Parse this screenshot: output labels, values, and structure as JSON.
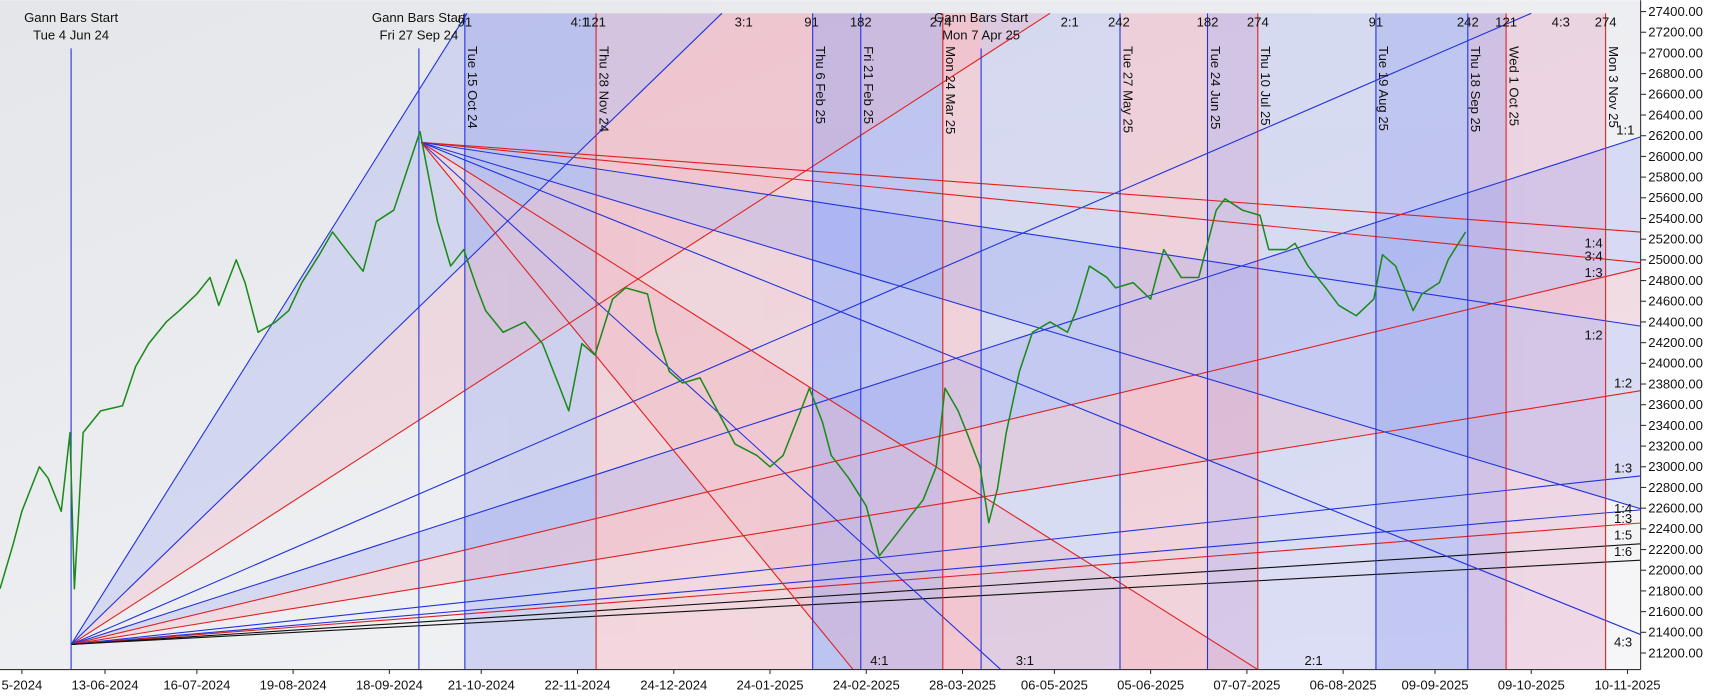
{
  "chart_data": {
    "type": "line",
    "series": [
      {
        "color": "#1a8a1a",
        "x": [
          0,
          3,
          5,
          9,
          11,
          14,
          16,
          17,
          19,
          23,
          28,
          31,
          34,
          38,
          41,
          45,
          48,
          50,
          54,
          56,
          59,
          63,
          66,
          69,
          73,
          76,
          80,
          83,
          86,
          90,
          93,
          96,
          98,
          100,
          103,
          106,
          109,
          111,
          115,
          120,
          124,
          128,
          130,
          133,
          136,
          140,
          143,
          148,
          150,
          153,
          156,
          160,
          164,
          168,
          173,
          176,
          179,
          183,
          185,
          188,
          190,
          194,
          198,
          201,
          204,
          208,
          211,
          214,
          216,
          219,
          221,
          224,
          226,
          228,
          230,
          233,
          236,
          240,
          244,
          246,
          249,
          253,
          255,
          259,
          263,
          266,
          270,
          274,
          278,
          280,
          284,
          288,
          290,
          294,
          296,
          299,
          303,
          306,
          310,
          314,
          316,
          319,
          323,
          325,
          329,
          331,
          335
        ],
        "values": [
          21820,
          22250,
          22570,
          23000,
          22890,
          22570,
          23330,
          21820,
          23330,
          23540,
          23590,
          23970,
          24190,
          24400,
          24510,
          24670,
          24830,
          24560,
          25000,
          24780,
          24300,
          24400,
          24510,
          24780,
          25050,
          25270,
          25050,
          24890,
          25370,
          25480,
          25860,
          26240,
          25800,
          25370,
          24940,
          25100,
          24730,
          24510,
          24300,
          24400,
          24190,
          23760,
          23540,
          24190,
          24080,
          24620,
          24730,
          24670,
          24300,
          23920,
          23810,
          23860,
          23540,
          23220,
          23110,
          23000,
          23110,
          23540,
          23760,
          23430,
          23110,
          22890,
          22620,
          22140,
          22300,
          22520,
          22680,
          23000,
          23760,
          23540,
          23330,
          23000,
          22460,
          22790,
          23330,
          23920,
          24300,
          24400,
          24300,
          24510,
          24940,
          24830,
          24730,
          24780,
          24620,
          25100,
          24830,
          24830,
          25480,
          25590,
          25480,
          25430,
          25100,
          25100,
          25160,
          24940,
          24730,
          24560,
          24460,
          24620,
          25050,
          24940,
          24510,
          24670,
          24780,
          25000,
          25270
        ]
      }
    ],
    "xlim": [
      0,
      375
    ],
    "xticks": [
      {
        "value": 5,
        "label": "5-2024"
      },
      {
        "value": 24,
        "label": "13-06-2024"
      },
      {
        "value": 45,
        "label": "16-07-2024"
      },
      {
        "value": 67,
        "label": "19-08-2024"
      },
      {
        "value": 89,
        "label": "18-09-2024"
      },
      {
        "value": 110,
        "label": "21-10-2024"
      },
      {
        "value": 132,
        "label": "22-11-2024"
      },
      {
        "value": 154,
        "label": "24-12-2024"
      },
      {
        "value": 176,
        "label": "24-01-2025"
      },
      {
        "value": 198,
        "label": "24-02-2025"
      },
      {
        "value": 220,
        "label": "28-03-2025"
      },
      {
        "value": 241,
        "label": "06-05-2025"
      },
      {
        "value": 263,
        "label": "05-06-2025"
      },
      {
        "value": 285,
        "label": "07-07-2025"
      },
      {
        "value": 307,
        "label": "06-08-2025"
      },
      {
        "value": 328,
        "label": "09-09-2025"
      },
      {
        "value": 350,
        "label": "09-10-2025"
      },
      {
        "value": 372,
        "label": "10-11-2025"
      }
    ],
    "ylim": [
      21040,
      27510
    ],
    "yticks": [
      {
        "value": 21200,
        "label": "21200.00"
      },
      {
        "value": 21400,
        "label": "21400.00"
      },
      {
        "value": 21600,
        "label": "21600.00"
      },
      {
        "value": 21800,
        "label": "21800.00"
      },
      {
        "value": 22000,
        "label": "22000.00"
      },
      {
        "value": 22200,
        "label": "22200.00"
      },
      {
        "value": 22400,
        "label": "22400.00"
      },
      {
        "value": 22600,
        "label": "22600.00"
      },
      {
        "value": 22800,
        "label": "22800.00"
      },
      {
        "value": 23000,
        "label": "23000.00"
      },
      {
        "value": 23200,
        "label": "23200.00"
      },
      {
        "value": 23400,
        "label": "23400.00"
      },
      {
        "value": 23600,
        "label": "23600.00"
      },
      {
        "value": 23800,
        "label": "23800.00"
      },
      {
        "value": 24000,
        "label": "24000.00"
      },
      {
        "value": 24200,
        "label": "24200.00"
      },
      {
        "value": 24400,
        "label": "24400.00"
      },
      {
        "value": 24600,
        "label": "24600.00"
      },
      {
        "value": 24800,
        "label": "24800.00"
      },
      {
        "value": 25000,
        "label": "25000.00"
      },
      {
        "value": 25200,
        "label": "25200.00"
      },
      {
        "value": 25400,
        "label": "25400.00"
      },
      {
        "value": 25600,
        "label": "25600.00"
      },
      {
        "value": 25800,
        "label": "25800.00"
      },
      {
        "value": 26000,
        "label": "26000.00"
      },
      {
        "value": 26200,
        "label": "26200.00"
      },
      {
        "value": 26400,
        "label": "26400.00"
      },
      {
        "value": 26600,
        "label": "26600.00"
      },
      {
        "value": 26800,
        "label": "26800.00"
      },
      {
        "value": 27000,
        "label": "27000.00"
      },
      {
        "value": 27200,
        "label": "27200.00"
      },
      {
        "value": 27400,
        "label": "27400.00"
      }
    ],
    "annotations": {
      "gann_starts": [
        {
          "label": "Gann Bars Start",
          "date": "Tue 4 Jun 24"
        },
        {
          "label": "Gann Bars Start",
          "date": "Fri 27 Sep 24"
        },
        {
          "label": "Gann Bars Start",
          "date": "Mon 7 Apr 25"
        }
      ],
      "time_lines": [
        "Tue 15 Oct 24",
        "Thu 28 Nov 24",
        "Thu 6 Feb 25",
        "Fri 21 Feb 25",
        "Mon 24 Mar 25",
        "Tue 27 May 25",
        "Tue 24 Jun 25",
        "Thu 10 Jul 25",
        "Tue 19 Aug 25",
        "Thu 18 Sep 25",
        "Wed 1 Oct 25",
        "Mon 3 Nov 25"
      ],
      "top_labels": [
        "91",
        "4:1",
        "121",
        "3:1",
        "91",
        "182",
        "274",
        "2:1",
        "242",
        "182",
        "274",
        "91",
        "242",
        "121",
        "4:3",
        "274"
      ],
      "bottom_labels": [
        "4:1",
        "3:1",
        "2:1",
        "4:3"
      ],
      "right_labels": [
        "1:1",
        "1:4",
        "3:4",
        "1:3",
        "1:2",
        "1:2",
        "1:3",
        "1:4",
        "1:3",
        "1:5",
        "1:6"
      ]
    }
  }
}
